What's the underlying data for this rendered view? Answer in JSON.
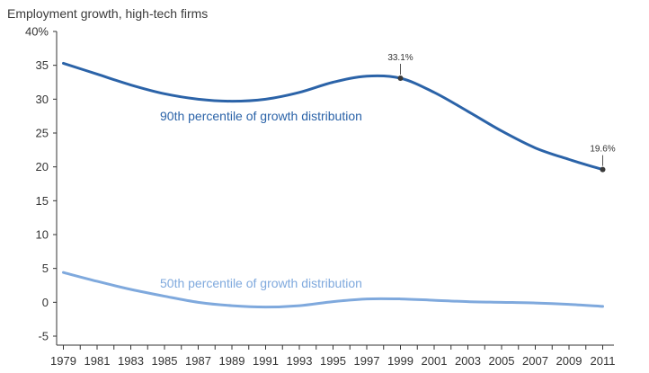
{
  "chart_data": {
    "type": "line",
    "title": "Employment growth, high-tech firms",
    "xlabel": "",
    "ylabel": "",
    "x": [
      1979,
      1981,
      1983,
      1985,
      1987,
      1989,
      1991,
      1993,
      1995,
      1997,
      1999,
      2001,
      2003,
      2005,
      2007,
      2009,
      2011
    ],
    "x_tick_labels": [
      "1979",
      "1981",
      "1983",
      "1985",
      "1987",
      "1989",
      "1991",
      "1993",
      "1995",
      "1997",
      "1999",
      "2001",
      "2003",
      "2005",
      "2007",
      "2009",
      "2011"
    ],
    "ylim": [
      -5,
      40
    ],
    "y_ticks": [
      -5,
      0,
      5,
      10,
      15,
      20,
      25,
      30,
      35,
      40
    ],
    "y_tick_labels": [
      "-5",
      "0",
      "5",
      "10",
      "15",
      "20",
      "25",
      "30",
      "35",
      "40%"
    ],
    "grid": false,
    "series": [
      {
        "name": "90th percentile of growth distribution",
        "color": "#2b63a8",
        "values": [
          35.3,
          33.7,
          32.1,
          30.8,
          30.0,
          29.7,
          30.0,
          31.0,
          32.5,
          33.4,
          33.1,
          31.0,
          28.2,
          25.3,
          22.8,
          21.1,
          19.6
        ]
      },
      {
        "name": "50th percentile of growth distribution",
        "color": "#7fa9dd",
        "values": [
          4.4,
          3.1,
          1.9,
          0.9,
          0.0,
          -0.5,
          -0.7,
          -0.5,
          0.1,
          0.5,
          0.5,
          0.3,
          0.1,
          0.0,
          -0.1,
          -0.3,
          -0.6
        ]
      }
    ],
    "annotations": [
      {
        "series": 0,
        "x": 1999,
        "y": 33.1,
        "text": "33.1%"
      },
      {
        "series": 0,
        "x": 2011,
        "y": 19.6,
        "text": "19.6%"
      }
    ]
  }
}
